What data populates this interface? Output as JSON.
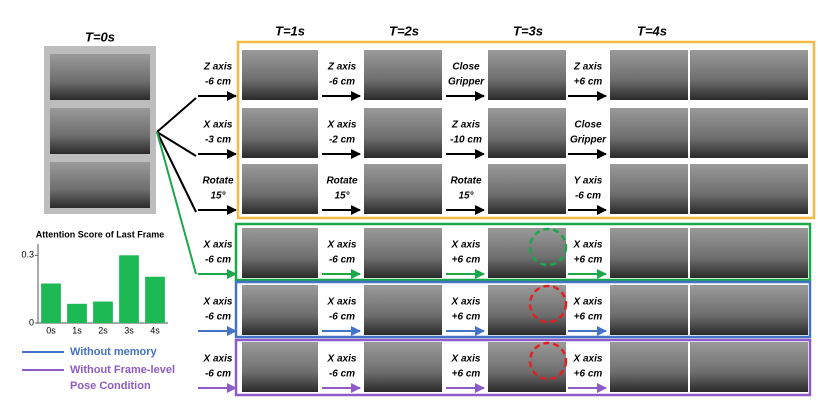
{
  "header": {
    "t0": "T=0s",
    "times": [
      "T=1s",
      "T=2s",
      "T=3s",
      "T=4s"
    ]
  },
  "rows": [
    {
      "actions": [
        [
          "Z axis",
          "-6 cm"
        ],
        [
          "Z axis",
          "-6 cm"
        ],
        [
          "Close",
          "Gripper"
        ],
        [
          "Z axis",
          "+6 cm"
        ]
      ]
    },
    {
      "actions": [
        [
          "X axis",
          "-3 cm"
        ],
        [
          "X axis",
          "-2 cm"
        ],
        [
          "Z axis",
          "-10 cm"
        ],
        [
          "Close",
          "Gripper"
        ]
      ]
    },
    {
      "actions": [
        [
          "Rotate",
          "15°"
        ],
        [
          "Rotate",
          "15°"
        ],
        [
          "Rotate",
          "15°"
        ],
        [
          "Y axis",
          "-6 cm"
        ]
      ]
    },
    {
      "actions": [
        [
          "X axis",
          "-6 cm"
        ],
        [
          "X axis",
          "-6 cm"
        ],
        [
          "X axis",
          "+6 cm"
        ],
        [
          "X axis",
          "+6 cm"
        ]
      ]
    },
    {
      "actions": [
        [
          "X axis",
          "-6 cm"
        ],
        [
          "X axis",
          "-6 cm"
        ],
        [
          "X axis",
          "+6 cm"
        ],
        [
          "X axis",
          "+6 cm"
        ]
      ]
    },
    {
      "actions": [
        [
          "X axis",
          "-6 cm"
        ],
        [
          "X axis",
          "-6 cm"
        ],
        [
          "X axis",
          "+6 cm"
        ],
        [
          "X axis",
          "+6 cm"
        ]
      ]
    }
  ],
  "legend": [
    {
      "lines": [
        "Without memory"
      ],
      "color": "#4472c4"
    },
    {
      "lines": [
        "Without Frame-level",
        "Pose Condition"
      ],
      "color": "#8e5cc4"
    }
  ],
  "chart_data": {
    "type": "bar",
    "title": "Attention Score of Last Frame",
    "categories": [
      "0s",
      "1s",
      "2s",
      "3s",
      "4s"
    ],
    "values": [
      0.175,
      0.085,
      0.095,
      0.3,
      0.205
    ],
    "color": "#1db954",
    "ylim": [
      0,
      0.35
    ],
    "yticks": [
      0,
      0.3
    ]
  }
}
